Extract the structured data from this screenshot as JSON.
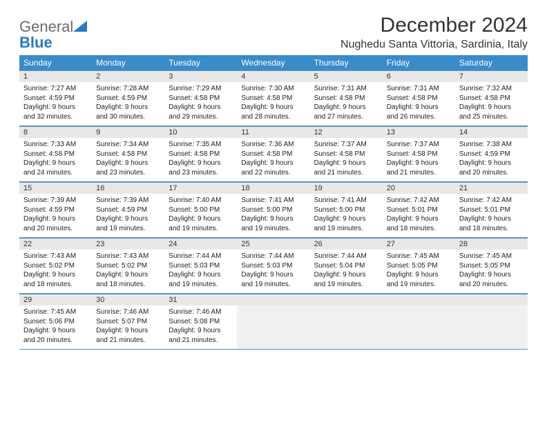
{
  "brand": {
    "part1": "General",
    "part2": "Blue"
  },
  "title": "December 2024",
  "location": "Nughedu Santa Vittoria, Sardinia, Italy",
  "colors": {
    "header_bg": "#3a8bc9",
    "header_text": "#ffffff",
    "daynum_bg": "#e8e8e8",
    "border": "#5a93b8",
    "logo_gray": "#6a6a6a",
    "logo_blue": "#2a7abf"
  },
  "weekdays": [
    "Sunday",
    "Monday",
    "Tuesday",
    "Wednesday",
    "Thursday",
    "Friday",
    "Saturday"
  ],
  "weeks": [
    [
      {
        "n": "1",
        "sr": "7:27 AM",
        "ss": "4:59 PM",
        "dl": "9 hours and 32 minutes."
      },
      {
        "n": "2",
        "sr": "7:28 AM",
        "ss": "4:59 PM",
        "dl": "9 hours and 30 minutes."
      },
      {
        "n": "3",
        "sr": "7:29 AM",
        "ss": "4:58 PM",
        "dl": "9 hours and 29 minutes."
      },
      {
        "n": "4",
        "sr": "7:30 AM",
        "ss": "4:58 PM",
        "dl": "9 hours and 28 minutes."
      },
      {
        "n": "5",
        "sr": "7:31 AM",
        "ss": "4:58 PM",
        "dl": "9 hours and 27 minutes."
      },
      {
        "n": "6",
        "sr": "7:31 AM",
        "ss": "4:58 PM",
        "dl": "9 hours and 26 minutes."
      },
      {
        "n": "7",
        "sr": "7:32 AM",
        "ss": "4:58 PM",
        "dl": "9 hours and 25 minutes."
      }
    ],
    [
      {
        "n": "8",
        "sr": "7:33 AM",
        "ss": "4:58 PM",
        "dl": "9 hours and 24 minutes."
      },
      {
        "n": "9",
        "sr": "7:34 AM",
        "ss": "4:58 PM",
        "dl": "9 hours and 23 minutes."
      },
      {
        "n": "10",
        "sr": "7:35 AM",
        "ss": "4:58 PM",
        "dl": "9 hours and 23 minutes."
      },
      {
        "n": "11",
        "sr": "7:36 AM",
        "ss": "4:58 PM",
        "dl": "9 hours and 22 minutes."
      },
      {
        "n": "12",
        "sr": "7:37 AM",
        "ss": "4:58 PM",
        "dl": "9 hours and 21 minutes."
      },
      {
        "n": "13",
        "sr": "7:37 AM",
        "ss": "4:58 PM",
        "dl": "9 hours and 21 minutes."
      },
      {
        "n": "14",
        "sr": "7:38 AM",
        "ss": "4:59 PM",
        "dl": "9 hours and 20 minutes."
      }
    ],
    [
      {
        "n": "15",
        "sr": "7:39 AM",
        "ss": "4:59 PM",
        "dl": "9 hours and 20 minutes."
      },
      {
        "n": "16",
        "sr": "7:39 AM",
        "ss": "4:59 PM",
        "dl": "9 hours and 19 minutes."
      },
      {
        "n": "17",
        "sr": "7:40 AM",
        "ss": "5:00 PM",
        "dl": "9 hours and 19 minutes."
      },
      {
        "n": "18",
        "sr": "7:41 AM",
        "ss": "5:00 PM",
        "dl": "9 hours and 19 minutes."
      },
      {
        "n": "19",
        "sr": "7:41 AM",
        "ss": "5:00 PM",
        "dl": "9 hours and 19 minutes."
      },
      {
        "n": "20",
        "sr": "7:42 AM",
        "ss": "5:01 PM",
        "dl": "9 hours and 18 minutes."
      },
      {
        "n": "21",
        "sr": "7:42 AM",
        "ss": "5:01 PM",
        "dl": "9 hours and 18 minutes."
      }
    ],
    [
      {
        "n": "22",
        "sr": "7:43 AM",
        "ss": "5:02 PM",
        "dl": "9 hours and 18 minutes."
      },
      {
        "n": "23",
        "sr": "7:43 AM",
        "ss": "5:02 PM",
        "dl": "9 hours and 18 minutes."
      },
      {
        "n": "24",
        "sr": "7:44 AM",
        "ss": "5:03 PM",
        "dl": "9 hours and 19 minutes."
      },
      {
        "n": "25",
        "sr": "7:44 AM",
        "ss": "5:03 PM",
        "dl": "9 hours and 19 minutes."
      },
      {
        "n": "26",
        "sr": "7:44 AM",
        "ss": "5:04 PM",
        "dl": "9 hours and 19 minutes."
      },
      {
        "n": "27",
        "sr": "7:45 AM",
        "ss": "5:05 PM",
        "dl": "9 hours and 19 minutes."
      },
      {
        "n": "28",
        "sr": "7:45 AM",
        "ss": "5:05 PM",
        "dl": "9 hours and 20 minutes."
      }
    ],
    [
      {
        "n": "29",
        "sr": "7:45 AM",
        "ss": "5:06 PM",
        "dl": "9 hours and 20 minutes."
      },
      {
        "n": "30",
        "sr": "7:46 AM",
        "ss": "5:07 PM",
        "dl": "9 hours and 21 minutes."
      },
      {
        "n": "31",
        "sr": "7:46 AM",
        "ss": "5:08 PM",
        "dl": "9 hours and 21 minutes."
      },
      null,
      null,
      null,
      null
    ]
  ],
  "labels": {
    "sunrise": "Sunrise:",
    "sunset": "Sunset:",
    "daylight": "Daylight:"
  }
}
